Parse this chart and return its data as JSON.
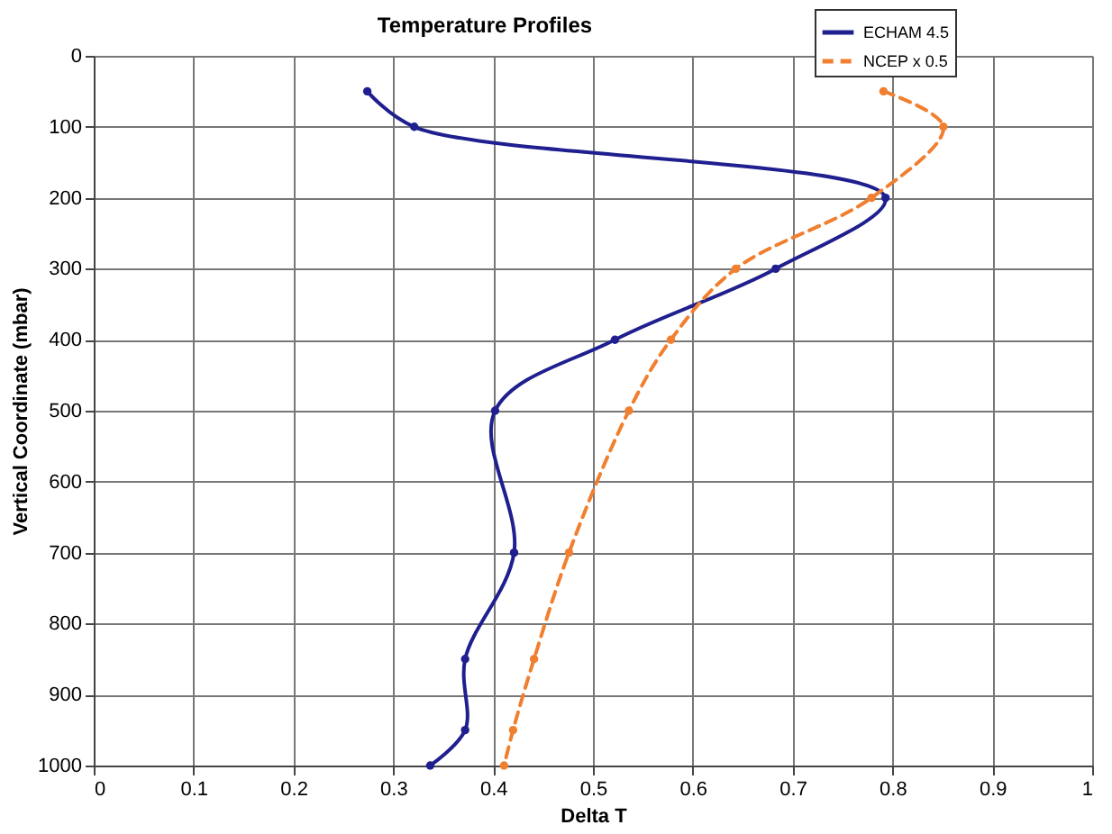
{
  "chart_data": {
    "type": "line",
    "title": "Temperature Profiles",
    "xlabel": "Delta T",
    "ylabel": "Vertical Coordinate (mbar)",
    "xlim": [
      0,
      1
    ],
    "xticks": [
      0,
      0.1,
      0.2,
      0.3,
      0.4,
      0.5,
      0.6,
      0.7,
      0.8,
      0.9,
      1
    ],
    "ylim": [
      1000,
      0
    ],
    "yticks": [
      0,
      100,
      200,
      300,
      400,
      500,
      600,
      700,
      800,
      900,
      1000
    ],
    "grid": true,
    "legend": "top right",
    "marker": "circle",
    "series": [
      {
        "name": "ECHAM 4.5",
        "color": "#1f1f8f",
        "line_style": "solid",
        "x": [
          0.274,
          0.321,
          0.793,
          0.683,
          0.522,
          0.402,
          0.421,
          0.372,
          0.372,
          0.337
        ],
        "values": [
          50,
          100,
          200,
          300,
          400,
          500,
          700,
          850,
          950,
          1000
        ]
      },
      {
        "name": "NCEP x 0.5",
        "color": "#f07f2f",
        "line_style": "dashed",
        "x": [
          0.791,
          0.851,
          0.779,
          0.643,
          0.578,
          0.536,
          0.476,
          0.441,
          0.42,
          0.411
        ],
        "values": [
          50,
          100,
          200,
          300,
          400,
          500,
          700,
          850,
          950,
          1000
        ]
      }
    ]
  }
}
